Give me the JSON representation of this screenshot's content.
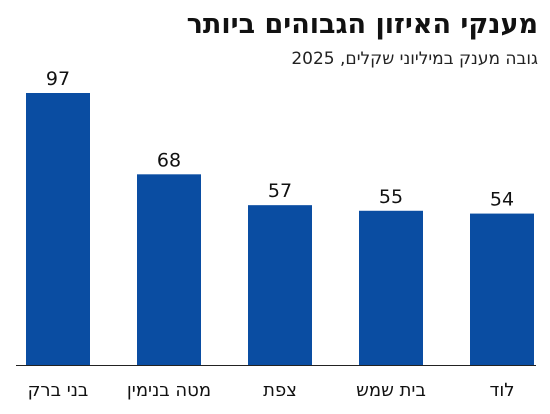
{
  "title": "מענקי האיזון הגבוהים ביותר",
  "subtitle": "גובה מענק במיליוני שקלים, 2025",
  "colors": {
    "bar": "#0A4DA2",
    "axis": "#222222"
  },
  "chart_data": {
    "type": "bar",
    "title": "מענקי האיזון הגבוהים ביותר",
    "subtitle": "גובה מענק במיליוני שקלים, 2025",
    "categories": [
      "בני ברק",
      "מטה בנימין",
      "צפת",
      "בית שמש",
      "לוד"
    ],
    "values": [
      97,
      68,
      57,
      55,
      54
    ],
    "ylim": [
      0,
      97
    ],
    "grid": false,
    "data_labels": true
  }
}
